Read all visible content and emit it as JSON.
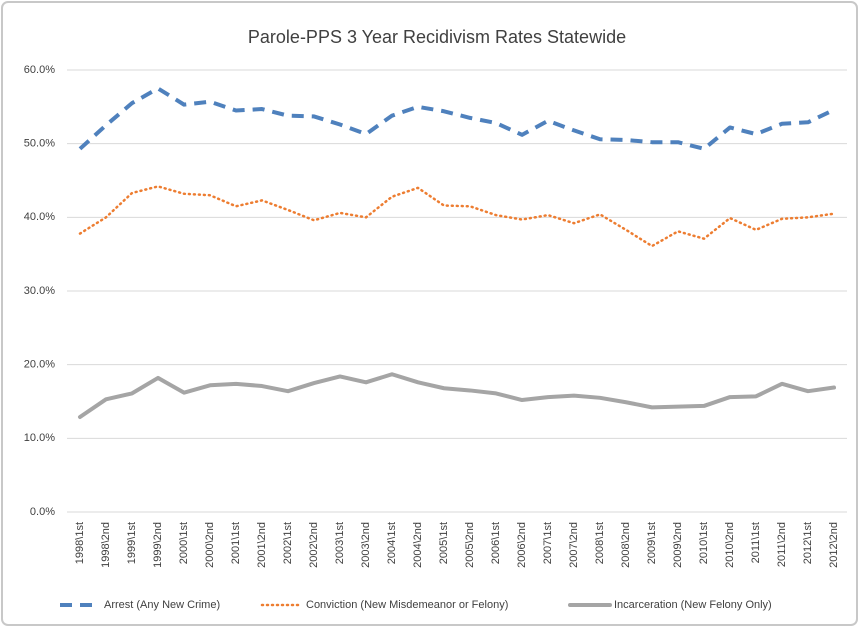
{
  "chart_data": {
    "type": "line",
    "title": "Parole-PPS 3 Year Recidivism Rates Statewide",
    "categories": [
      "1998\\1st",
      "1998\\2nd",
      "1999\\1st",
      "1999\\2nd",
      "2000\\1st",
      "2000\\2nd",
      "2001\\1st",
      "2001\\2nd",
      "2002\\1st",
      "2002\\2nd",
      "2003\\1st",
      "2003\\2nd",
      "2004\\1st",
      "2004\\2nd",
      "2005\\1st",
      "2005\\2nd",
      "2006\\1st",
      "2006\\2nd",
      "2007\\1st",
      "2007\\2nd",
      "2008\\1st",
      "2008\\2nd",
      "2009\\1st",
      "2009\\2nd",
      "2010\\1st",
      "2010\\2nd",
      "2011\\1st",
      "2011\\2nd",
      "2012\\1st",
      "2012\\2nd"
    ],
    "series": [
      {
        "name": "Arrest (Any New Crime)",
        "color": "#4f81bd",
        "style": "dashed",
        "values": [
          49.3,
          52.5,
          55.5,
          57.5,
          55.3,
          55.7,
          54.5,
          54.7,
          53.8,
          53.7,
          52.6,
          51.3,
          53.8,
          55.0,
          54.4,
          53.5,
          52.8,
          51.2,
          53.1,
          51.8,
          50.6,
          50.5,
          50.2,
          50.2,
          49.3,
          52.2,
          51.3,
          52.7,
          52.9,
          54.6
        ]
      },
      {
        "name": "Conviction (New Misdemeanor or Felony)",
        "color": "#ed7d31",
        "style": "dotted",
        "values": [
          37.8,
          40.0,
          43.3,
          44.2,
          43.2,
          43.0,
          41.5,
          42.3,
          41.0,
          39.6,
          40.6,
          40.0,
          42.8,
          44.0,
          41.6,
          41.5,
          40.3,
          39.7,
          40.3,
          39.2,
          40.4,
          38.3,
          36.1,
          38.1,
          37.1,
          39.9,
          38.3,
          39.8,
          40.0,
          40.5
        ]
      },
      {
        "name": "Incarceration (New Felony Only)",
        "color": "#a5a5a5",
        "style": "solid",
        "values": [
          12.9,
          15.3,
          16.1,
          18.2,
          16.2,
          17.2,
          17.4,
          17.1,
          16.4,
          17.5,
          18.4,
          17.6,
          18.7,
          17.6,
          16.8,
          16.5,
          16.1,
          15.2,
          15.6,
          15.8,
          15.5,
          14.9,
          14.2,
          14.3,
          14.4,
          15.6,
          15.7,
          17.4,
          16.4,
          16.9
        ]
      }
    ],
    "ylim": [
      0,
      60
    ],
    "yticks": [
      {
        "value": 0,
        "label": "0.0%"
      },
      {
        "value": 10,
        "label": "10.0%"
      },
      {
        "value": 20,
        "label": "20.0%"
      },
      {
        "value": 30,
        "label": "30.0%"
      },
      {
        "value": 40,
        "label": "40.0%"
      },
      {
        "value": 50,
        "label": "50.0%"
      },
      {
        "value": 60,
        "label": "60.0%"
      }
    ],
    "grid": true,
    "legend": "bottom"
  }
}
